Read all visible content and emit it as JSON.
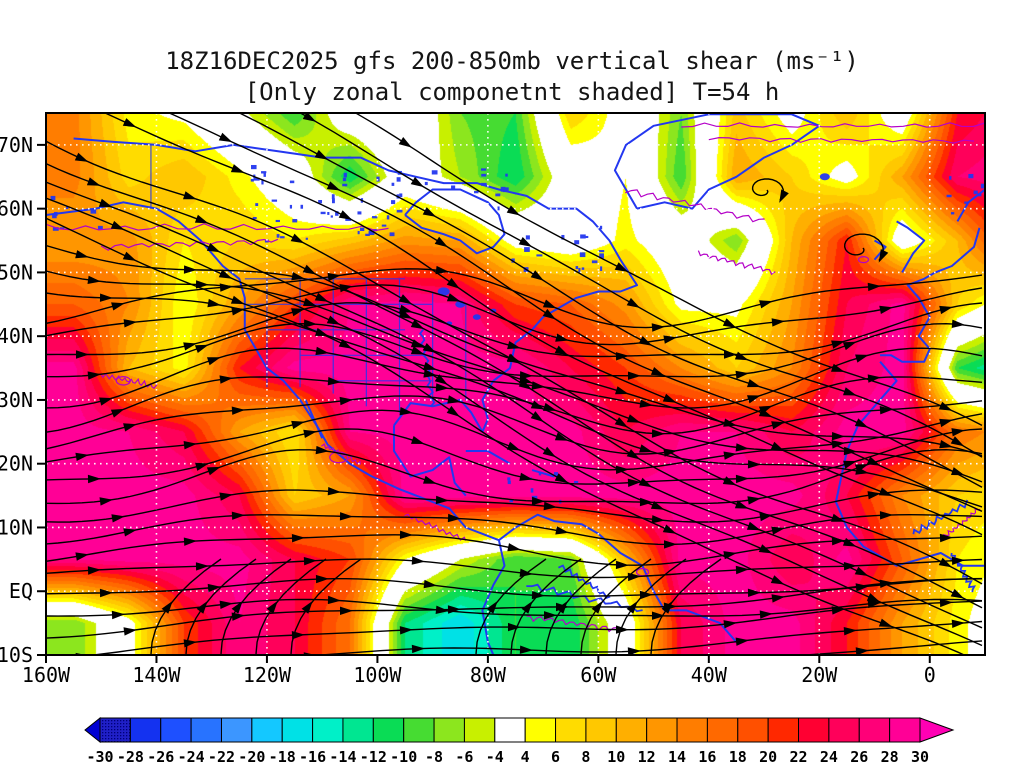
{
  "title": {
    "line1": "18Z16DEC2025 gfs 200-850mb vertical shear (ms⁻¹)",
    "line2": "[Only zonal componetnt shaded] T=54 h"
  },
  "chart_data": {
    "type": "heatmap",
    "overlays": [
      "streamlines",
      "coastlines",
      "lat-lon gridlines"
    ],
    "title": "18Z16DEC2025 gfs 200-850mb vertical shear (ms⁻¹)",
    "subtitle": "[Only zonal componetnt shaded] T=54 h",
    "units": "ms⁻¹",
    "projection": "latlon",
    "lon_range": [
      -160,
      10
    ],
    "lat_range": [
      -10,
      75
    ],
    "x_ticks": [
      {
        "lon": -160,
        "label": "160W"
      },
      {
        "lon": -140,
        "label": "140W"
      },
      {
        "lon": -120,
        "label": "120W"
      },
      {
        "lon": -100,
        "label": "100W"
      },
      {
        "lon": -80,
        "label": "80W"
      },
      {
        "lon": -60,
        "label": "60W"
      },
      {
        "lon": -40,
        "label": "40W"
      },
      {
        "lon": -20,
        "label": "20W"
      },
      {
        "lon": 0,
        "label": "0"
      }
    ],
    "y_ticks": [
      {
        "lat": 70,
        "label": "70N"
      },
      {
        "lat": 60,
        "label": "60N"
      },
      {
        "lat": 50,
        "label": "50N"
      },
      {
        "lat": 40,
        "label": "40N"
      },
      {
        "lat": 30,
        "label": "30N"
      },
      {
        "lat": 20,
        "label": "20N"
      },
      {
        "lat": 10,
        "label": "10N"
      },
      {
        "lat": 0,
        "label": "EQ"
      },
      {
        "lat": -10,
        "label": "10S"
      }
    ],
    "gridlines": {
      "lat_step": 10,
      "lon_step": 20,
      "color": "#ffffff",
      "style": "dotted"
    },
    "grid": {
      "lons": [
        -155,
        -145,
        -135,
        -125,
        -115,
        -105,
        -95,
        -85,
        -75,
        -65,
        -55,
        -45,
        -35,
        -25,
        -15,
        -5,
        5,
        15
      ],
      "lats": [
        75,
        65,
        55,
        45,
        35,
        25,
        15,
        5,
        -5
      ],
      "values": [
        [
          15,
          5,
          3,
          -3,
          -10,
          0,
          2,
          -8,
          -10,
          8,
          2,
          -8,
          9,
          2,
          10,
          0,
          22,
          26
        ],
        [
          15,
          7,
          10,
          5,
          0,
          -12,
          0,
          -6,
          -12,
          0,
          4,
          -10,
          12,
          8,
          2,
          12,
          26,
          28
        ],
        [
          12,
          13,
          6,
          8,
          6,
          9,
          13,
          12,
          2,
          0,
          5,
          0,
          -8,
          10,
          22,
          0,
          10,
          24
        ],
        [
          18,
          14,
          4,
          12,
          20,
          28,
          29,
          28,
          20,
          18,
          13,
          3,
          3,
          12,
          24,
          29,
          8,
          0
        ],
        [
          29,
          10,
          5,
          22,
          29,
          29,
          29,
          29,
          29,
          24,
          20,
          14,
          8,
          14,
          26,
          29,
          -10,
          -16
        ],
        [
          29,
          28,
          24,
          12,
          6,
          28,
          29,
          29,
          29,
          29,
          24,
          28,
          28,
          24,
          29,
          29,
          16,
          12
        ],
        [
          29,
          29,
          29,
          24,
          8,
          12,
          29,
          29,
          29,
          29,
          29,
          29,
          29,
          29,
          24,
          14,
          8,
          6
        ],
        [
          28,
          29,
          29,
          29,
          24,
          20,
          4,
          -4,
          -10,
          -8,
          10,
          29,
          29,
          24,
          29,
          18,
          6,
          3
        ],
        [
          -8,
          2,
          20,
          28,
          24,
          16,
          -12,
          -18,
          -10,
          -12,
          0,
          24,
          29,
          29,
          22,
          12,
          5,
          0
        ]
      ]
    },
    "colorbar": {
      "levels": [
        -30,
        -28,
        -26,
        -24,
        -22,
        -20,
        -18,
        -16,
        -14,
        -12,
        -10,
        -8,
        -6,
        -4,
        4,
        6,
        8,
        10,
        12,
        14,
        16,
        18,
        20,
        22,
        24,
        26,
        28,
        30
      ],
      "colors": [
        "#2020C8",
        "#1432F0",
        "#1E50FF",
        "#2873FF",
        "#3C96FF",
        "#14C8FF",
        "#00E1E6",
        "#00F0C8",
        "#00E691",
        "#0ADC55",
        "#46DC32",
        "#8CE61E",
        "#C8F000",
        "#FFFFFF",
        "#FFFF00",
        "#FFDC00",
        "#FFC800",
        "#FFAF00",
        "#FF9600",
        "#FF7D00",
        "#FF6900",
        "#FF5000",
        "#FF2800",
        "#FF0032",
        "#FF005A",
        "#FF0078",
        "#FF0096"
      ],
      "below_color": "#0000D2",
      "above_color": "#FF00B4",
      "hatched_segment": 0,
      "coastline_color": "#2337F0",
      "contour_color": "#B400C8",
      "streamline_color": "#000000"
    }
  }
}
